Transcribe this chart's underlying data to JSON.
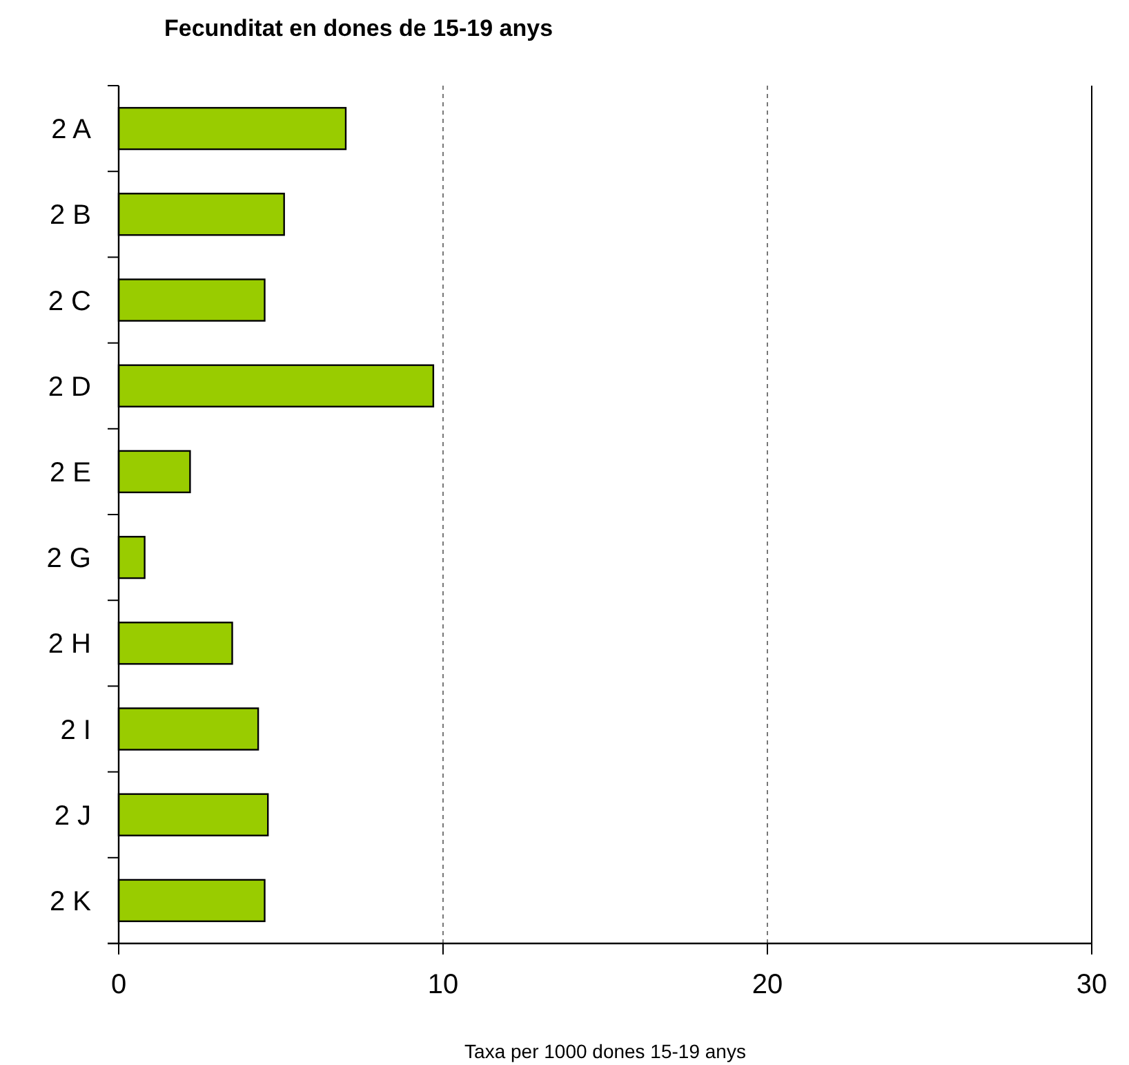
{
  "chart_data": {
    "type": "bar",
    "orientation": "horizontal",
    "title": "Fecunditat  en dones de 15-19 anys",
    "xlabel": "Taxa per 1000 dones 15-19 anys",
    "categories": [
      "2 A",
      "2 B",
      "2 C",
      "2 D",
      "2 E",
      "2 G",
      "2 H",
      "2 I",
      "2 J",
      "2 K"
    ],
    "values": [
      7.0,
      5.1,
      4.5,
      9.7,
      2.2,
      0.8,
      3.5,
      4.3,
      4.6,
      4.5
    ],
    "color": "#99cc00",
    "xlim": [
      0,
      30
    ],
    "xticks": [
      0,
      10,
      20,
      30
    ],
    "grid": "x"
  }
}
